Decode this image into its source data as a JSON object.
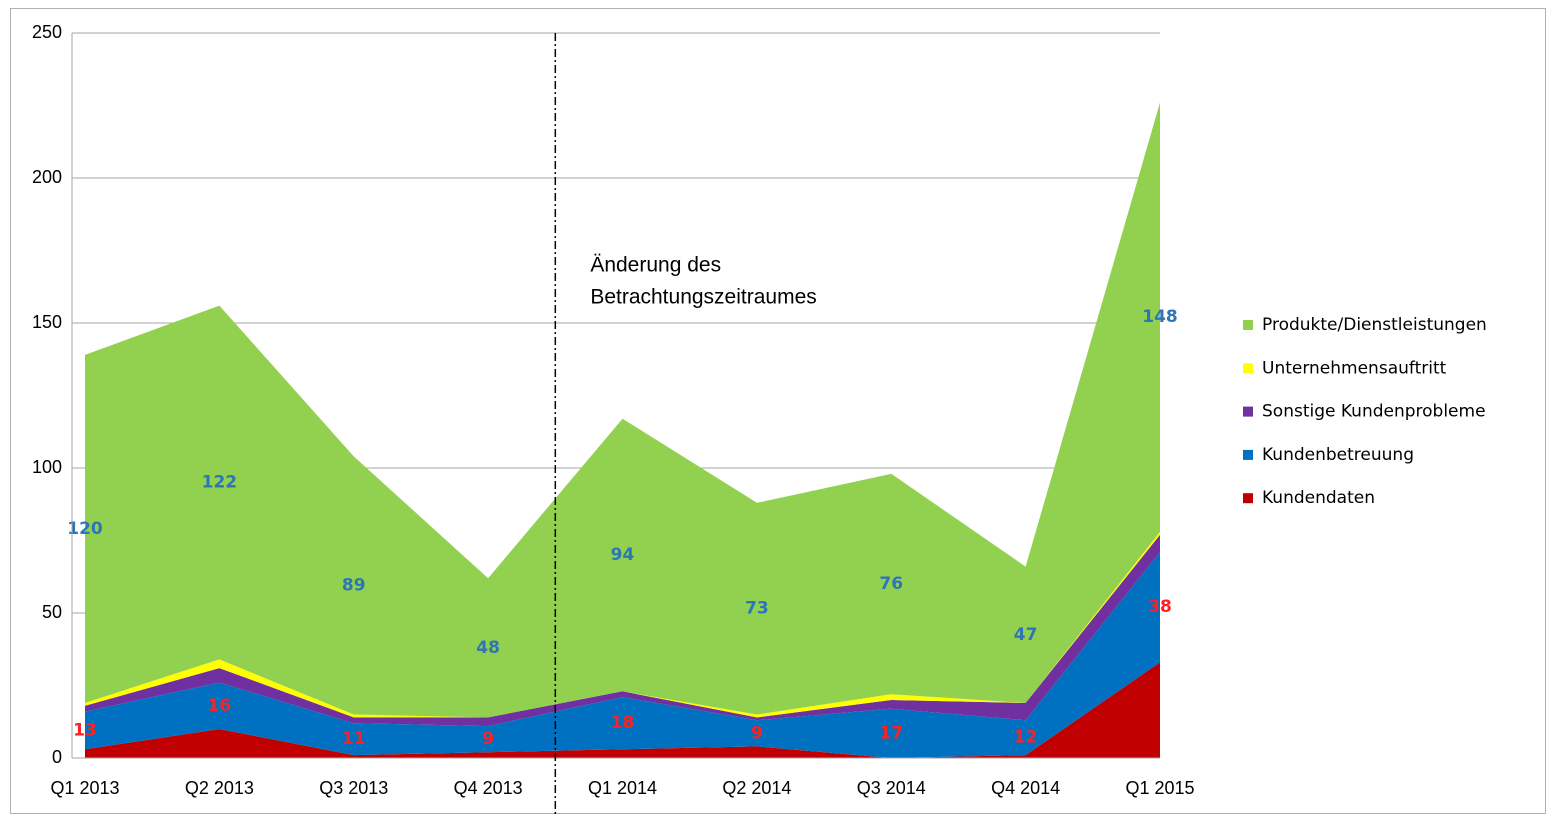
{
  "chart_data": {
    "type": "stacked_area",
    "categories": [
      "Q1 2013",
      "Q2 2013",
      "Q3 2013",
      "Q4 2013",
      "Q1 2014",
      "Q2 2014",
      "Q3 2014",
      "Q4 2014",
      "Q1 2015"
    ],
    "series": [
      {
        "name": "Kundendaten",
        "color": "#c00000",
        "values": [
          3,
          10,
          1,
          2,
          3,
          4,
          0,
          1,
          33
        ]
      },
      {
        "name": "Kundenbetreuung",
        "color": "#0070c0",
        "values": [
          13,
          16,
          11,
          9,
          18,
          9,
          17,
          12,
          38
        ],
        "label_color": "#ff2020"
      },
      {
        "name": "Sonstige Kundenprobleme",
        "color": "#7030a0",
        "values": [
          2,
          5,
          2,
          3,
          2,
          1,
          3,
          6,
          6
        ]
      },
      {
        "name": "Unternehmensauftritt",
        "color": "#ffff00",
        "values": [
          1,
          3,
          1,
          0,
          0,
          1,
          2,
          0,
          1
        ]
      },
      {
        "name": "Produkte/Dienstleistungen",
        "color": "#92d050",
        "values": [
          120,
          122,
          89,
          48,
          94,
          73,
          76,
          47,
          148
        ],
        "label_color": "#2e75b6"
      }
    ],
    "ylim": [
      0,
      250
    ],
    "yticks": [
      0,
      50,
      100,
      150,
      200,
      250
    ],
    "grid": true,
    "legend": "right",
    "annotation": [
      "Änderung des",
      "Betrachtungszeitraumes"
    ]
  }
}
